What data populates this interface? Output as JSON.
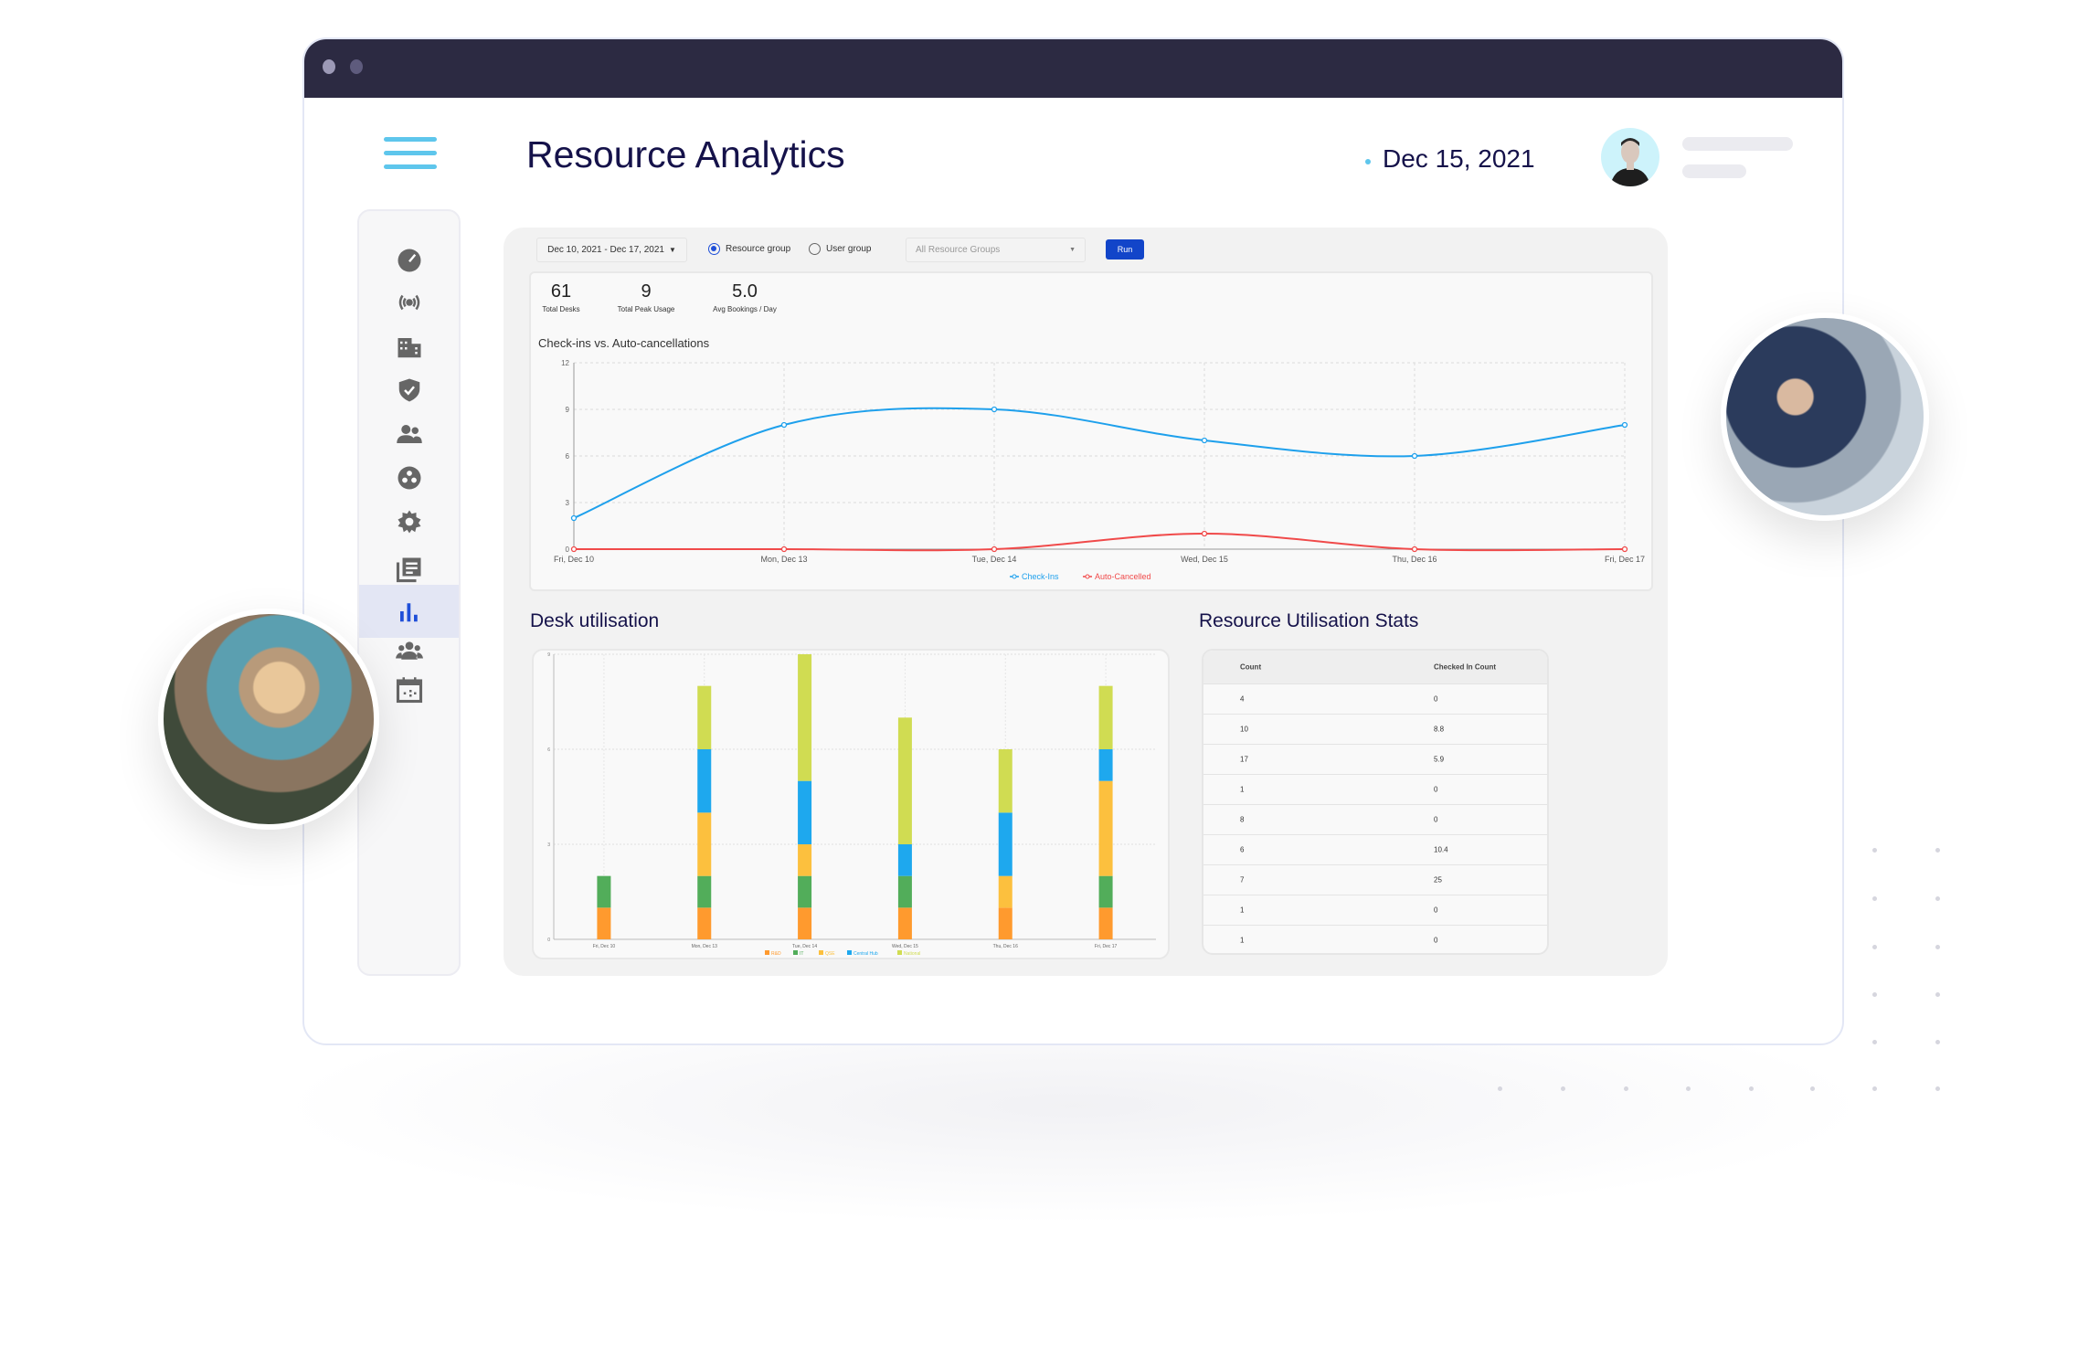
{
  "header": {
    "title": "Resource Analytics",
    "date": "Dec 15, 2021"
  },
  "sidebar": {
    "items": [
      {
        "icon": "dashboard-gauge-icon"
      },
      {
        "icon": "broadcast-icon"
      },
      {
        "icon": "building-icon"
      },
      {
        "icon": "shield-check-icon"
      },
      {
        "icon": "users-icon"
      },
      {
        "icon": "groups-circle-icon"
      },
      {
        "icon": "settings-gear-icon"
      },
      {
        "icon": "reports-list-icon"
      },
      {
        "icon": "analytics-bar-chart-icon",
        "active": true
      },
      {
        "icon": "team-icon"
      },
      {
        "icon": "calendar-icon"
      }
    ]
  },
  "controls": {
    "date_range": "Dec 10, 2021 - Dec 17, 2021",
    "radio_resource": "Resource group",
    "radio_user": "User group",
    "selected_radio": "Resource group",
    "group_select": "All Resource Groups",
    "run": "Run"
  },
  "kpis": [
    {
      "value": "61",
      "label": "Total Desks"
    },
    {
      "value": "9",
      "label": "Total Peak Usage"
    },
    {
      "value": "5.0",
      "label": "Avg Bookings / Day"
    }
  ],
  "accent": "#1245c9",
  "chart_data": [
    {
      "type": "line",
      "title": "Check-ins vs. Auto-cancellations",
      "categories": [
        "Fri, Dec 10",
        "Mon, Dec 13",
        "Tue, Dec 14",
        "Wed, Dec 15",
        "Thu, Dec 16",
        "Fri, Dec 17"
      ],
      "yticks": [
        0,
        3,
        6,
        9,
        12
      ],
      "ylim": [
        0,
        12
      ],
      "grid": true,
      "legend": "bottom",
      "series": [
        {
          "name": "Check-Ins",
          "color": "#1ea0ec",
          "values": [
            2,
            8,
            9,
            7,
            6,
            8
          ]
        },
        {
          "name": "Auto-Cancelled",
          "color": "#f04a4a",
          "values": [
            0,
            0,
            0,
            1,
            0,
            0
          ]
        }
      ]
    },
    {
      "type": "bar",
      "stacked": true,
      "title": "Desk utilisation",
      "categories": [
        "Fri, Dec 10",
        "Mon, Dec 13",
        "Tue, Dec 14",
        "Wed, Dec 15",
        "Thu, Dec 16",
        "Fri, Dec 17"
      ],
      "yticks": [
        0,
        3,
        6,
        9
      ],
      "ylim": [
        0,
        9
      ],
      "grid": true,
      "legend": "bottom",
      "series": [
        {
          "name": "R&D",
          "color": "#ff9a2e",
          "values": [
            1,
            1,
            1,
            1,
            1,
            1
          ]
        },
        {
          "name": "IT",
          "color": "#52ad5a",
          "values": [
            1,
            1,
            1,
            1,
            0,
            1
          ]
        },
        {
          "name": "QSE",
          "color": "#fcc03e",
          "values": [
            0,
            2,
            1,
            0,
            1,
            3
          ]
        },
        {
          "name": "Central Hub",
          "color": "#1ea8ee",
          "values": [
            0,
            2,
            2,
            1,
            2,
            1
          ]
        },
        {
          "name": "National",
          "color": "#d0dc52",
          "values": [
            0,
            2,
            4,
            4,
            2,
            2
          ]
        }
      ]
    }
  ],
  "stats": {
    "title": "Resource Utilisation Stats",
    "columns": [
      "Count",
      "Checked In Count"
    ],
    "rows": [
      [
        "4",
        "0"
      ],
      [
        "10",
        "8.8"
      ],
      [
        "17",
        "5.9"
      ],
      [
        "1",
        "0"
      ],
      [
        "8",
        "0"
      ],
      [
        "6",
        "10.4"
      ],
      [
        "7",
        "25"
      ],
      [
        "1",
        "0"
      ],
      [
        "1",
        "0"
      ]
    ]
  }
}
